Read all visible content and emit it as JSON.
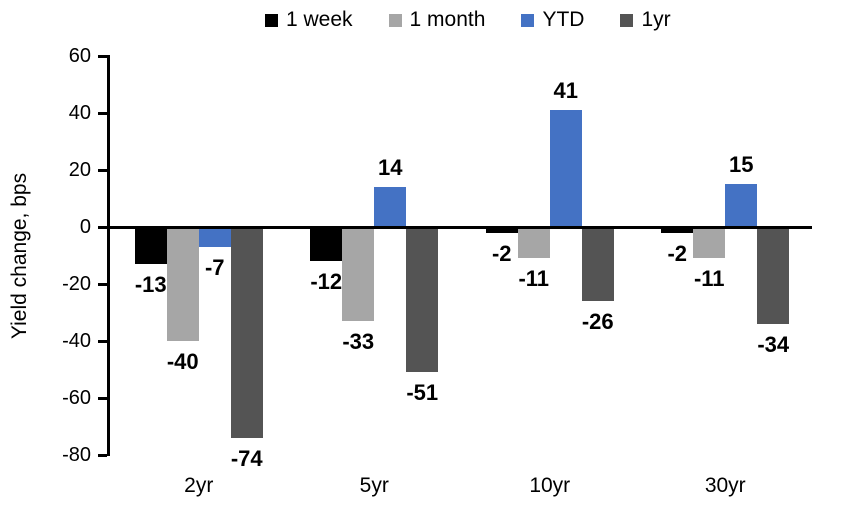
{
  "chart_data": {
    "type": "bar",
    "title": "",
    "ylabel": "Yield change, bps",
    "xlabel": "",
    "categories": [
      "2yr",
      "5yr",
      "10yr",
      "30yr"
    ],
    "series": [
      {
        "name": "1 week",
        "color": "#000000",
        "values": [
          -13,
          -12,
          -2,
          -2
        ]
      },
      {
        "name": "1 month",
        "color": "#A6A6A6",
        "values": [
          -40,
          -33,
          -11,
          -11
        ]
      },
      {
        "name": "YTD",
        "color": "#4472C4",
        "values": [
          -7,
          14,
          41,
          15
        ]
      },
      {
        "name": "1yr",
        "color": "#545454",
        "values": [
          -74,
          -51,
          -26,
          -34
        ]
      }
    ],
    "ylim": [
      -80,
      60
    ],
    "yticks": [
      60,
      40,
      20,
      0,
      -20,
      -40,
      -60,
      -80
    ],
    "legend_position": "top",
    "legend_labels": [
      "1 week",
      "1 month",
      "YTD",
      "1yr"
    ],
    "grid": false,
    "data_labels": true,
    "background": "#FFFFFF",
    "axis_color": "#000000"
  }
}
